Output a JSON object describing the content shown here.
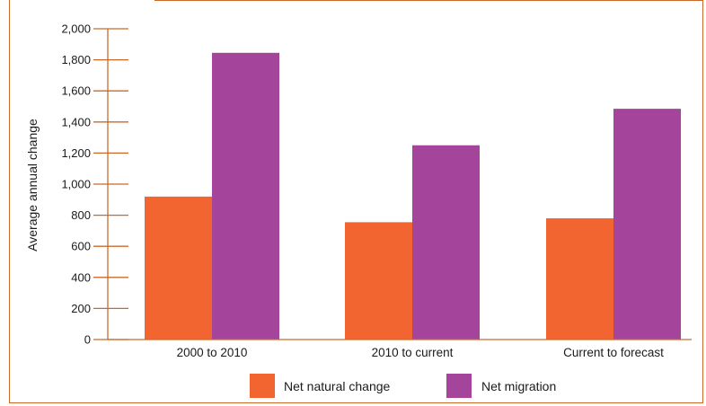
{
  "chart_data": {
    "type": "bar",
    "title": "",
    "xlabel": "",
    "ylabel": "Average annual change",
    "ylim": [
      0,
      2000
    ],
    "yticks": [
      0,
      200,
      400,
      600,
      800,
      1000,
      1200,
      1400,
      1600,
      1800,
      2000
    ],
    "ytick_labels": [
      "0",
      "200",
      "400",
      "600",
      "800",
      "1,000",
      "1,200",
      "1,400",
      "1,600",
      "1,800",
      "2,000"
    ],
    "categories": [
      "2000 to 2010",
      "2010 to current",
      "Current to forecast"
    ],
    "series": [
      {
        "name": "Net natural change",
        "color": "#f26430",
        "values": [
          920,
          755,
          780
        ]
      },
      {
        "name": "Net migration",
        "color": "#a4449a",
        "values": [
          1845,
          1250,
          1485
        ]
      }
    ],
    "legend_position": "bottom-center",
    "grid": false
  },
  "colors": {
    "frame": "#c96a2b",
    "axis": "#c96a2b",
    "text": "#1a1a1a"
  }
}
